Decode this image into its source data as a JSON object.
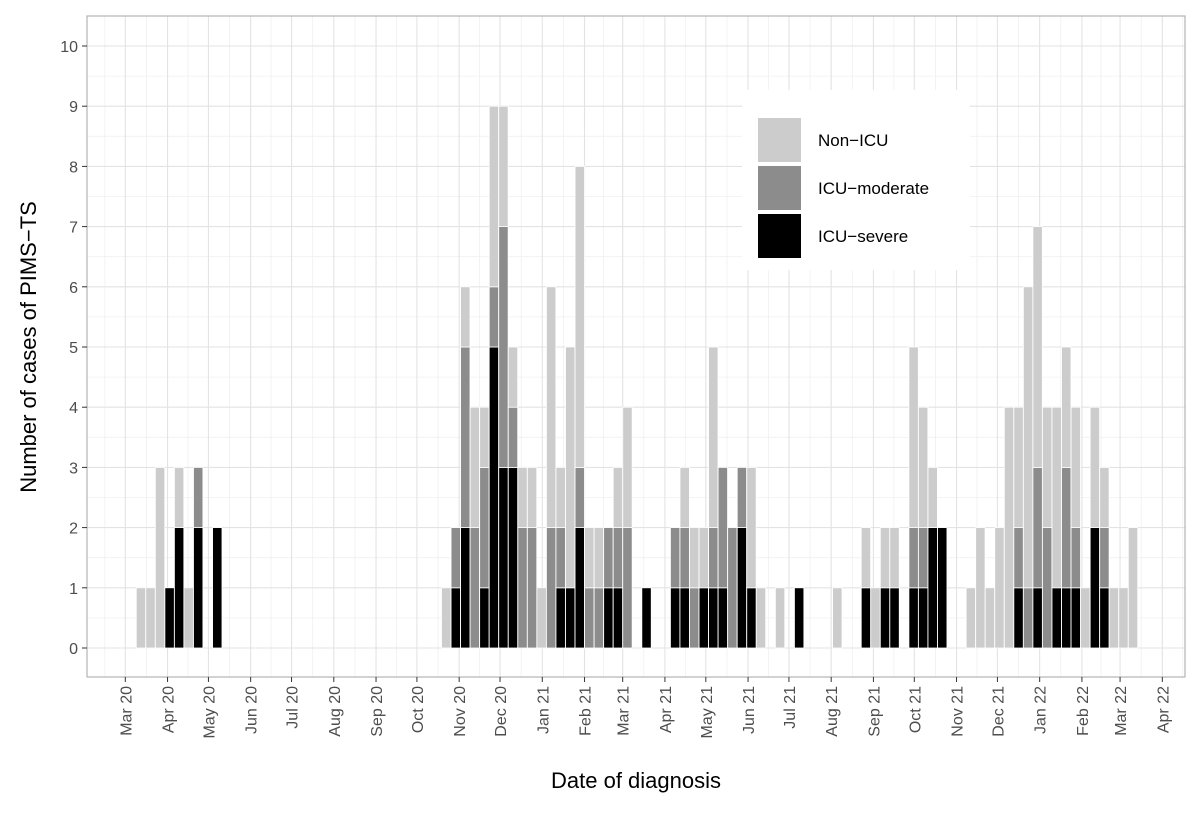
{
  "chart_data": {
    "type": "bar",
    "stacked": true,
    "bin": "week",
    "first_week_start": "2020-03-09",
    "xlabel": "Date of diagnosis",
    "ylabel": "Number of cases of PIMS−TS",
    "ylim": [
      0,
      10
    ],
    "yticks": [
      0,
      1,
      2,
      3,
      4,
      5,
      6,
      7,
      8,
      9,
      10
    ],
    "xlim": [
      "2020-02-03",
      "2022-04-25"
    ],
    "xticks": [
      {
        "date": "2020-03-01",
        "label": "Mar 20"
      },
      {
        "date": "2020-04-01",
        "label": "Apr 20"
      },
      {
        "date": "2020-05-01",
        "label": "May 20"
      },
      {
        "date": "2020-06-01",
        "label": "Jun 20"
      },
      {
        "date": "2020-07-01",
        "label": "Jul 20"
      },
      {
        "date": "2020-08-01",
        "label": "Aug 20"
      },
      {
        "date": "2020-09-01",
        "label": "Sep 20"
      },
      {
        "date": "2020-10-01",
        "label": "Oct 20"
      },
      {
        "date": "2020-11-01",
        "label": "Nov 20"
      },
      {
        "date": "2020-12-01",
        "label": "Dec 20"
      },
      {
        "date": "2021-01-01",
        "label": "Jan 21"
      },
      {
        "date": "2021-02-01",
        "label": "Feb 21"
      },
      {
        "date": "2021-03-01",
        "label": "Mar 21"
      },
      {
        "date": "2021-04-01",
        "label": "Apr 21"
      },
      {
        "date": "2021-05-01",
        "label": "May 21"
      },
      {
        "date": "2021-06-01",
        "label": "Jun 21"
      },
      {
        "date": "2021-07-01",
        "label": "Jul 21"
      },
      {
        "date": "2021-08-01",
        "label": "Aug 21"
      },
      {
        "date": "2021-09-01",
        "label": "Sep 21"
      },
      {
        "date": "2021-10-01",
        "label": "Oct 21"
      },
      {
        "date": "2021-11-01",
        "label": "Nov 21"
      },
      {
        "date": "2021-12-01",
        "label": "Dec 21"
      },
      {
        "date": "2022-01-01",
        "label": "Jan 22"
      },
      {
        "date": "2022-02-01",
        "label": "Feb 22"
      },
      {
        "date": "2022-03-01",
        "label": "Mar 22"
      },
      {
        "date": "2022-04-01",
        "label": "Apr 22"
      }
    ],
    "grid": true,
    "legend_position": "top-right",
    "series": [
      {
        "name": "ICU−severe",
        "color": "#000000",
        "values": [
          0,
          0,
          0,
          1,
          2,
          0,
          2,
          0,
          2,
          0,
          0,
          0,
          0,
          0,
          0,
          0,
          0,
          0,
          0,
          0,
          0,
          0,
          0,
          0,
          0,
          0,
          0,
          0,
          0,
          0,
          0,
          0,
          0,
          1,
          2,
          0,
          1,
          5,
          3,
          3,
          0,
          0,
          0,
          0,
          1,
          1,
          2,
          0,
          0,
          1,
          1,
          0,
          0,
          1,
          0,
          0,
          1,
          1,
          0,
          1,
          1,
          1,
          0,
          2,
          1,
          0,
          0,
          0,
          0,
          1,
          0,
          0,
          0,
          0,
          0,
          0,
          1,
          0,
          1,
          1,
          0,
          1,
          1,
          2,
          2,
          0,
          0,
          0,
          0,
          0,
          0,
          0,
          1,
          0,
          1,
          0,
          1,
          1,
          1,
          0,
          2,
          1,
          0,
          0,
          0
        ]
      },
      {
        "name": "ICU−moderate",
        "color": "#8c8c8c",
        "values": [
          0,
          0,
          0,
          0,
          0,
          0,
          1,
          0,
          0,
          0,
          0,
          0,
          0,
          0,
          0,
          0,
          0,
          0,
          0,
          0,
          0,
          0,
          0,
          0,
          0,
          0,
          0,
          0,
          0,
          0,
          0,
          0,
          0,
          1,
          3,
          2,
          2,
          1,
          4,
          1,
          2,
          2,
          0,
          2,
          1,
          0,
          1,
          1,
          1,
          1,
          1,
          2,
          0,
          0,
          0,
          0,
          1,
          1,
          1,
          0,
          1,
          2,
          2,
          1,
          0,
          0,
          0,
          0,
          0,
          0,
          0,
          0,
          0,
          0,
          0,
          0,
          0,
          0,
          0,
          0,
          0,
          1,
          1,
          0,
          0,
          0,
          0,
          0,
          0,
          0,
          0,
          0,
          1,
          1,
          2,
          2,
          0,
          2,
          1,
          0,
          0,
          1,
          0,
          0,
          0
        ]
      },
      {
        "name": "Non−ICU",
        "color": "#cccccc",
        "values": [
          1,
          1,
          3,
          0,
          1,
          1,
          0,
          0,
          0,
          0,
          0,
          0,
          0,
          0,
          0,
          0,
          0,
          0,
          0,
          0,
          0,
          0,
          0,
          0,
          0,
          0,
          0,
          0,
          0,
          0,
          0,
          0,
          1,
          0,
          1,
          2,
          1,
          3,
          2,
          1,
          1,
          1,
          1,
          4,
          1,
          4,
          5,
          1,
          1,
          0,
          1,
          2,
          0,
          0,
          0,
          0,
          0,
          1,
          1,
          1,
          3,
          0,
          0,
          0,
          2,
          1,
          0,
          1,
          0,
          0,
          0,
          0,
          0,
          1,
          0,
          0,
          1,
          1,
          1,
          1,
          0,
          3,
          2,
          1,
          0,
          0,
          0,
          1,
          2,
          1,
          2,
          4,
          2,
          5,
          4,
          2,
          3,
          2,
          2,
          1,
          2,
          1,
          1,
          1,
          2
        ]
      }
    ],
    "legend": [
      "Non−ICU",
      "ICU−moderate",
      "ICU−severe"
    ]
  }
}
